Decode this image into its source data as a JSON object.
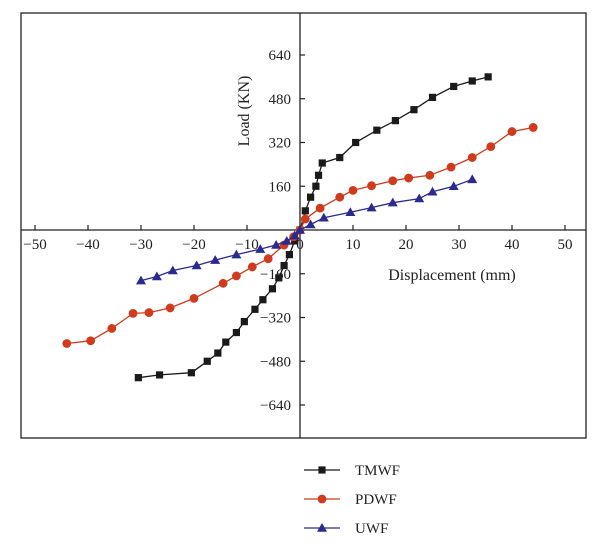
{
  "chart_data": {
    "type": "line",
    "xlabel": "Displacement (mm)",
    "ylabel": "Load (KN)",
    "xlim": [
      -55,
      55
    ],
    "ylim": [
      -800,
      800
    ],
    "xticks": [
      -50,
      -40,
      -30,
      -20,
      -10,
      0,
      10,
      20,
      30,
      40,
      50
    ],
    "yticks": [
      -640,
      -480,
      -320,
      -160,
      0,
      160,
      320,
      480,
      640
    ],
    "xtick_labels": [
      "−50",
      "−40",
      "−30",
      "−20",
      "−10",
      "0",
      "10",
      "20",
      "30",
      "40",
      "50"
    ],
    "ytick_labels": [
      "−640",
      "−480",
      "−320",
      "−160",
      "",
      "160",
      "320",
      "480",
      "640"
    ],
    "grid": false,
    "legend_position": "bottom-center",
    "series": [
      {
        "name": "TMWF",
        "color": "#1a1a1a",
        "marker": "square",
        "points": [
          [
            -30.5,
            -540
          ],
          [
            -26.5,
            -530
          ],
          [
            -20.5,
            -522
          ],
          [
            -17.5,
            -480
          ],
          [
            -15.5,
            -450
          ],
          [
            -14,
            -410
          ],
          [
            -12,
            -375
          ],
          [
            -10.5,
            -335
          ],
          [
            -8.5,
            -290
          ],
          [
            -7,
            -255
          ],
          [
            -5.2,
            -215
          ],
          [
            -4,
            -175
          ],
          [
            -3,
            -130
          ],
          [
            -2,
            -90
          ],
          [
            -1,
            -40
          ],
          [
            0,
            0
          ],
          [
            1,
            70
          ],
          [
            2,
            120
          ],
          [
            3,
            160
          ],
          [
            3.5,
            200
          ],
          [
            4.2,
            245
          ],
          [
            7.5,
            265
          ],
          [
            10.5,
            320
          ],
          [
            14.5,
            365
          ],
          [
            18,
            400
          ],
          [
            21.5,
            440
          ],
          [
            25,
            485
          ],
          [
            29,
            525
          ],
          [
            32.5,
            545
          ],
          [
            35.5,
            560
          ]
        ]
      },
      {
        "name": "PDWF",
        "color": "#cf3b1c",
        "marker": "circle",
        "points": [
          [
            -44,
            -415
          ],
          [
            -39.5,
            -405
          ],
          [
            -35.5,
            -360
          ],
          [
            -31.5,
            -305
          ],
          [
            -28.5,
            -302
          ],
          [
            -24.5,
            -285
          ],
          [
            -20,
            -250
          ],
          [
            -14.5,
            -195
          ],
          [
            -12,
            -168
          ],
          [
            -9,
            -135
          ],
          [
            -6,
            -105
          ],
          [
            -3,
            -55
          ],
          [
            -1.2,
            -25
          ],
          [
            0,
            0
          ],
          [
            1,
            40
          ],
          [
            3.8,
            80
          ],
          [
            7.5,
            120
          ],
          [
            10,
            145
          ],
          [
            13.5,
            162
          ],
          [
            17.5,
            180
          ],
          [
            20.5,
            190
          ],
          [
            24.5,
            200
          ],
          [
            28.5,
            230
          ],
          [
            32.5,
            265
          ],
          [
            36,
            305
          ],
          [
            40,
            360
          ],
          [
            44,
            375
          ]
        ]
      },
      {
        "name": "UWF",
        "color": "#2b2b8f",
        "marker": "triangle",
        "points": [
          [
            -30,
            -185
          ],
          [
            -27,
            -170
          ],
          [
            -24,
            -148
          ],
          [
            -19.5,
            -130
          ],
          [
            -16,
            -110
          ],
          [
            -12,
            -90
          ],
          [
            -7.5,
            -70
          ],
          [
            -4.5,
            -55
          ],
          [
            -2.5,
            -40
          ],
          [
            -1,
            -20
          ],
          [
            0,
            0
          ],
          [
            2,
            20
          ],
          [
            4.5,
            45
          ],
          [
            9.5,
            65
          ],
          [
            13.5,
            82
          ],
          [
            17.5,
            100
          ],
          [
            22.5,
            115
          ],
          [
            25,
            140
          ],
          [
            29,
            160
          ],
          [
            32.5,
            185
          ]
        ]
      }
    ]
  }
}
